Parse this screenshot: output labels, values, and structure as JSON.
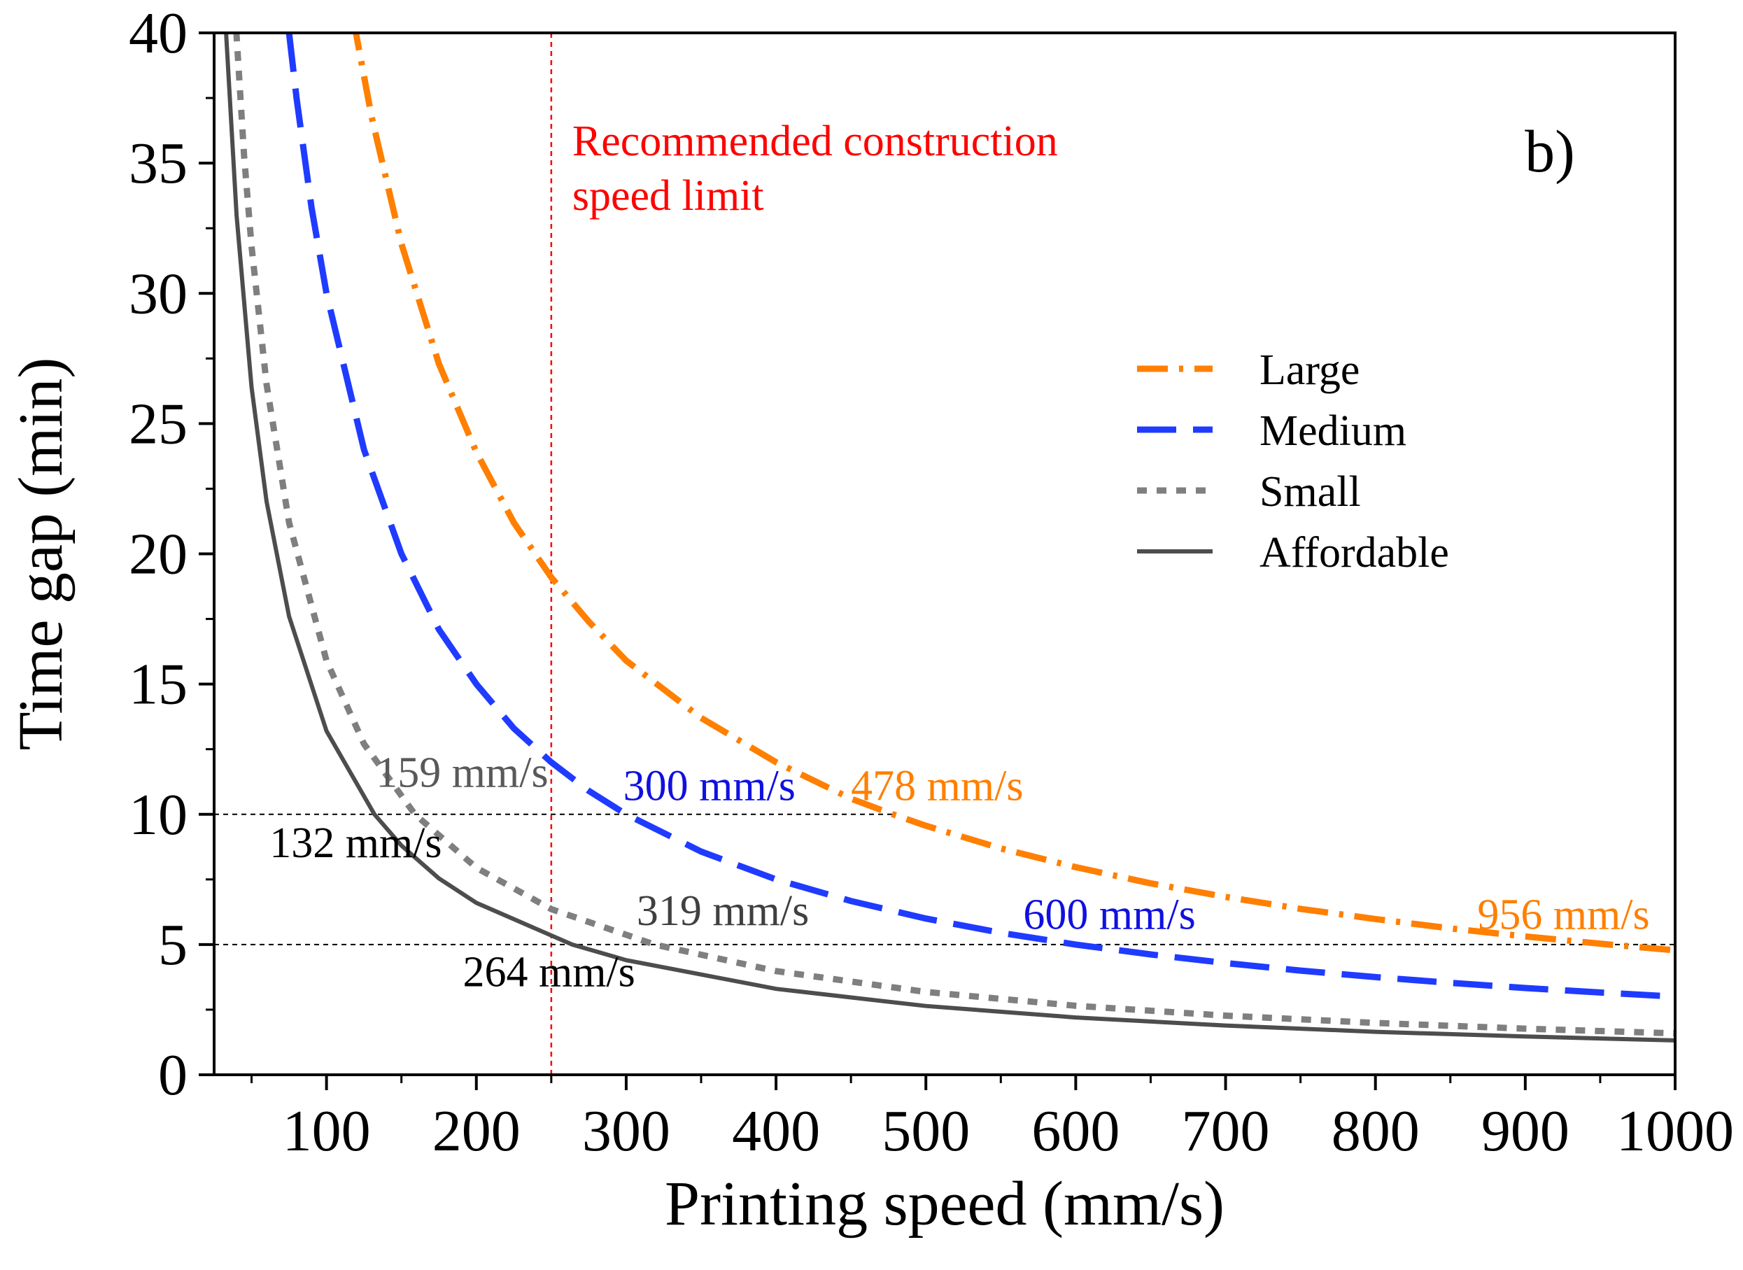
{
  "chart_data": {
    "type": "line",
    "panel_label": "b)",
    "xlabel": "Printing speed (mm/s)",
    "ylabel": "Time gap (min)",
    "xlim": [
      25,
      1000
    ],
    "ylim": [
      0,
      40
    ],
    "xticks": [
      100,
      200,
      300,
      400,
      500,
      600,
      700,
      800,
      900,
      1000
    ],
    "yticks": [
      0,
      5,
      10,
      15,
      20,
      25,
      30,
      35,
      40
    ],
    "grid": false,
    "legend_position": "right",
    "series": [
      {
        "name": "Large",
        "color": "#ff7f00",
        "style": "dash-dot",
        "x": [
          118,
          130,
          150,
          175,
          200,
          225,
          250,
          275,
          300,
          350,
          400,
          450,
          478,
          500,
          550,
          600,
          650,
          700,
          750,
          800,
          850,
          900,
          956,
          1000
        ],
        "y": [
          40.5,
          36.8,
          31.9,
          27.3,
          23.9,
          21.2,
          19.1,
          17.4,
          15.9,
          13.7,
          12.0,
          10.6,
          10.0,
          9.56,
          8.69,
          7.97,
          7.35,
          6.83,
          6.37,
          5.98,
          5.62,
          5.31,
          5.0,
          4.78
        ]
      },
      {
        "name": "Medium",
        "color": "#1f3bff",
        "style": "dashed",
        "x": [
          75,
          80,
          90,
          100,
          125,
          150,
          175,
          200,
          225,
          250,
          275,
          300,
          350,
          400,
          450,
          500,
          550,
          600,
          650,
          700,
          750,
          800,
          850,
          900,
          950,
          1000
        ],
        "y": [
          40.0,
          37.5,
          33.3,
          30.0,
          24.0,
          20.0,
          17.1,
          15.0,
          13.3,
          12.0,
          10.9,
          10.0,
          8.57,
          7.5,
          6.67,
          6.0,
          5.45,
          5.0,
          4.62,
          4.29,
          4.0,
          3.75,
          3.53,
          3.33,
          3.16,
          3.0
        ]
      },
      {
        "name": "Small",
        "color": "#7f7f7f",
        "style": "dotted",
        "x": [
          39,
          45,
          50,
          60,
          75,
          100,
          125,
          159,
          200,
          250,
          319,
          400,
          500,
          600,
          700,
          800,
          900,
          1000
        ],
        "y": [
          40.8,
          35.3,
          31.8,
          26.5,
          21.2,
          15.9,
          12.7,
          10.0,
          7.95,
          6.36,
          5.0,
          3.98,
          3.18,
          2.65,
          2.27,
          1.99,
          1.77,
          1.59
        ]
      },
      {
        "name": "Affordable",
        "color": "#4d4d4d",
        "style": "solid",
        "x": [
          33,
          40,
          50,
          60,
          75,
          100,
          132,
          150,
          175,
          200,
          264,
          300,
          400,
          500,
          600,
          700,
          800,
          900,
          1000
        ],
        "y": [
          40.0,
          33.0,
          26.4,
          22.0,
          17.6,
          13.2,
          10.0,
          8.8,
          7.54,
          6.6,
          5.0,
          4.4,
          3.3,
          2.64,
          2.2,
          1.89,
          1.65,
          1.47,
          1.32
        ]
      }
    ],
    "reference_lines": [
      {
        "orientation": "vertical",
        "x": 250,
        "color": "#ff0000",
        "style": "dotted",
        "label_lines": [
          "Recommended construction",
          "speed limit"
        ]
      },
      {
        "orientation": "horizontal",
        "y": 10,
        "x_range": [
          25,
          478
        ],
        "color": "#000000",
        "style": "dashed"
      },
      {
        "orientation": "horizontal",
        "y": 5,
        "x_range": [
          25,
          1000
        ],
        "color": "#000000",
        "style": "dashed"
      }
    ],
    "annotations": [
      {
        "text": "159 mm/s",
        "x": 133,
        "y": 11.05,
        "color": "#595959"
      },
      {
        "text": "300 mm/s",
        "x": 298,
        "y": 10.55,
        "color": "#1010e0"
      },
      {
        "text": "478 mm/s",
        "x": 450,
        "y": 10.55,
        "color": "#ff7f00"
      },
      {
        "text": "132 mm/s",
        "x": 62,
        "y": 8.35,
        "color": "#000000"
      },
      {
        "text": "319 mm/s",
        "x": 307,
        "y": 5.75,
        "color": "#404040"
      },
      {
        "text": "600 mm/s",
        "x": 565,
        "y": 5.6,
        "color": "#1010e0"
      },
      {
        "text": "956 mm/s",
        "x": 868,
        "y": 5.6,
        "color": "#ff7f00"
      },
      {
        "text": "264 mm/s",
        "x": 191,
        "y": 3.4,
        "color": "#000000"
      }
    ]
  }
}
